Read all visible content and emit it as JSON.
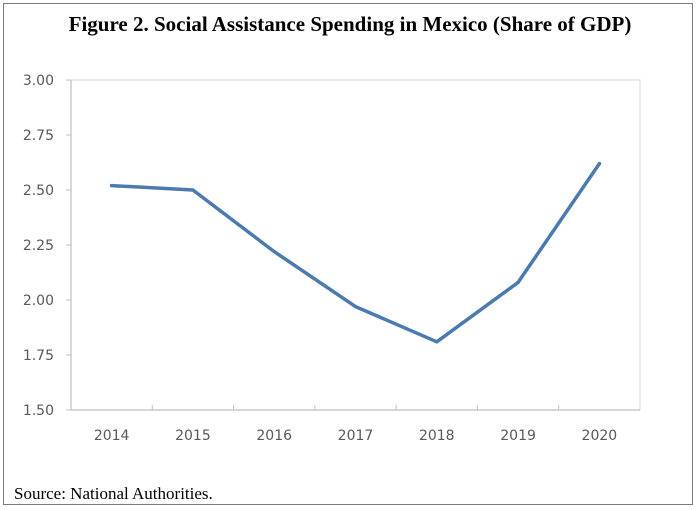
{
  "chart_data": {
    "type": "line",
    "title": "Figure 2. Social Assistance Spending in Mexico (Share of GDP)",
    "source": "Source: National Authorities.",
    "xlabel": "",
    "ylabel": "",
    "x": [
      "2014",
      "2015",
      "2016",
      "2017",
      "2018",
      "2019",
      "2020"
    ],
    "series": [
      {
        "name": "Social Assistance Spending (% of GDP)",
        "color": "#4a7ab0",
        "values": [
          2.52,
          2.5,
          2.22,
          1.97,
          1.81,
          2.08,
          2.62
        ]
      }
    ],
    "ylim": [
      1.5,
      3.0
    ],
    "yticks": [
      "1.50",
      "1.75",
      "2.00",
      "2.25",
      "2.50",
      "2.75",
      "3.00"
    ],
    "grid": false,
    "legend": "none"
  }
}
